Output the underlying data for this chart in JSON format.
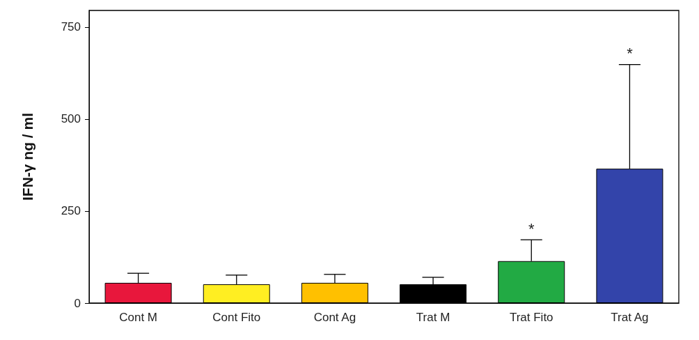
{
  "chart_data": {
    "type": "bar",
    "ylabel": "IFN-γ ng / ml",
    "categories": [
      "Cont M",
      "Cont Fito",
      "Cont Ag",
      "Trat M",
      "Trat Fito",
      "Trat Ag"
    ],
    "values": [
      55,
      51,
      55,
      51,
      114,
      365
    ],
    "colors": [
      "#e8173c",
      "#ffee22",
      "#ffc000",
      "#000000",
      "#22aa44",
      "#3344aa"
    ],
    "errors": [
      [
        55,
        81
      ],
      [
        51,
        76
      ],
      [
        55,
        78
      ],
      [
        51,
        70
      ],
      [
        114,
        172
      ],
      [
        365,
        648
      ]
    ],
    "ylim": [
      0,
      795
    ],
    "yticks": [
      0,
      250,
      500,
      750
    ],
    "grid": false,
    "annotations": [
      {
        "text": "*",
        "x": "Trat Fito",
        "y": 172
      },
      {
        "text": "*",
        "x": "Trat Ag",
        "y": 648
      }
    ]
  }
}
